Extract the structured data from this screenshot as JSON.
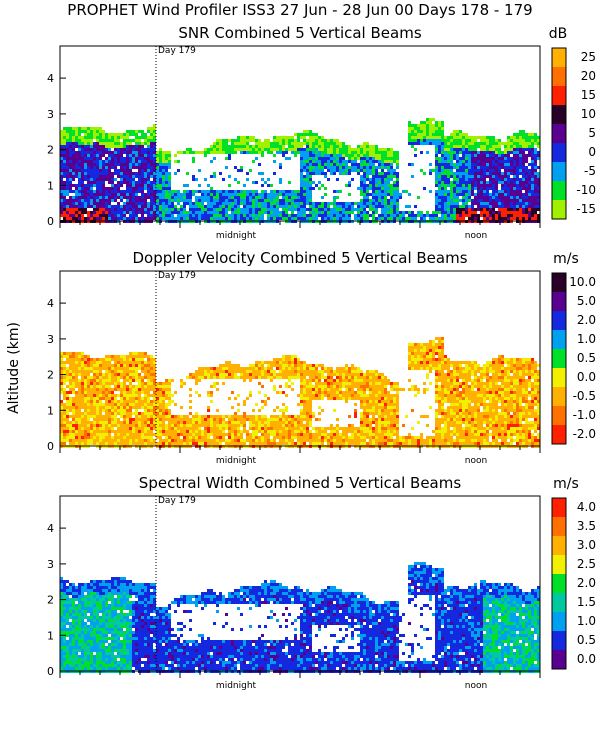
{
  "figure_title": "PROPHET Wind Profiler ISS3  27 Jun - 28 Jun 00 Days 178 - 179",
  "y_axis_label": "Altitude (km)",
  "chart_data": [
    {
      "type": "heatmap",
      "title": "SNR Combined 5 Vertical Beams",
      "unit": "dB",
      "ylabel": "Altitude (km)",
      "ylim": [
        0,
        4.9
      ],
      "yticks": [
        "0",
        "1",
        "2",
        "3",
        "4"
      ],
      "xtick_labels": [
        "midnight",
        "noon"
      ],
      "day_marker": "Day 179",
      "colorbar_labels": [
        "25",
        "20",
        "15",
        "10",
        "5",
        "0",
        "-5",
        "-10",
        "-15"
      ],
      "colorbar_colors": [
        "#ffb000",
        "#ff7000",
        "#ff2000",
        "#280028",
        "#5a0090",
        "#1428e0",
        "#00a0f0",
        "#00e028",
        "#a0f000"
      ]
    },
    {
      "type": "heatmap",
      "title": "Doppler Velocity Combined 5 Vertical Beams",
      "unit": "m/s",
      "ylabel": "Altitude (km)",
      "ylim": [
        0,
        4.9
      ],
      "yticks": [
        "0",
        "1",
        "2",
        "3",
        "4"
      ],
      "xtick_labels": [
        "midnight",
        "noon"
      ],
      "day_marker": "Day 179",
      "colorbar_labels": [
        "10.0",
        "5.0",
        "2.0",
        "1.0",
        "0.5",
        "0.0",
        "-0.5",
        "-1.0",
        "-2.0"
      ],
      "colorbar_colors": [
        "#280028",
        "#5a0090",
        "#1428e0",
        "#00a0f0",
        "#00e028",
        "#f0f000",
        "#ffb000",
        "#ff7000",
        "#ff2000"
      ]
    },
    {
      "type": "heatmap",
      "title": "Spectral Width Combined 5 Vertical Beams",
      "unit": "m/s",
      "ylabel": "Altitude (km)",
      "ylim": [
        0,
        4.9
      ],
      "yticks": [
        "0",
        "1",
        "2",
        "3",
        "4"
      ],
      "xtick_labels": [
        "midnight",
        "noon"
      ],
      "day_marker": "Day 179",
      "colorbar_labels": [
        "4.0",
        "3.5",
        "3.0",
        "2.5",
        "2.0",
        "1.5",
        "1.0",
        "0.5",
        "0.0"
      ],
      "colorbar_colors": [
        "#ff2000",
        "#ff7000",
        "#ffb000",
        "#f0f000",
        "#00e028",
        "#00c8a0",
        "#00a0f0",
        "#1428e0",
        "#5a0090"
      ]
    }
  ]
}
